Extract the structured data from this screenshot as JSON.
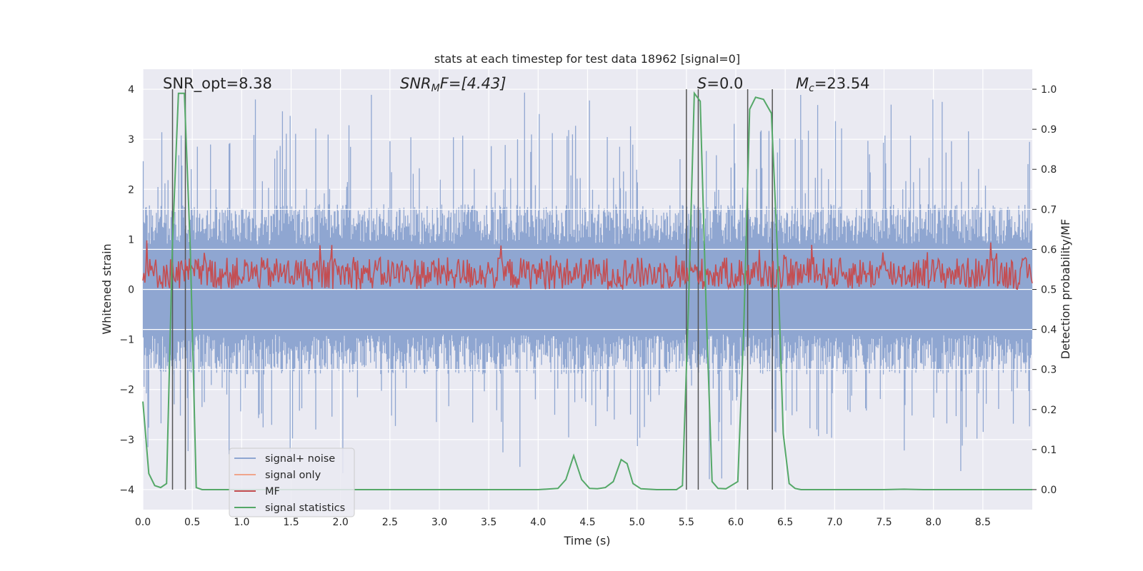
{
  "chart_data": {
    "type": "line",
    "title": "stats at each timestep for test data 18962 [signal=0]",
    "xlabel": "Time (s)",
    "ylabel": "Whitened strain",
    "y2label": "Detection probability/MF",
    "xlim": [
      0,
      9.0
    ],
    "ylim": [
      -4.4,
      4.4
    ],
    "y2lim": [
      -0.05,
      1.05
    ],
    "grid": true,
    "xticks": [
      0.0,
      0.5,
      1.0,
      1.5,
      2.0,
      2.5,
      3.0,
      3.5,
      4.0,
      4.5,
      5.0,
      5.5,
      6.0,
      6.5,
      7.0,
      7.5,
      8.0,
      8.5
    ],
    "yticks": [
      -4,
      -3,
      -2,
      -1,
      0,
      1,
      2,
      3,
      4
    ],
    "y2ticks": [
      0.0,
      0.1,
      0.2,
      0.3,
      0.4,
      0.5,
      0.6,
      0.7,
      0.8,
      0.9,
      1.0
    ],
    "annotations": {
      "snr_opt": "SNR_opt=8.38",
      "snr_mf_base": "SNR",
      "snr_mf_sub": "M",
      "snr_mf_rest": "F=[4.43]",
      "s_stat": "=0.0",
      "s_letter": "S",
      "mc_base": "M",
      "mc_sub": "c",
      "mc_rest": "=23.54"
    },
    "legend": {
      "placement": "lower-left",
      "entries": [
        {
          "label": "signal+ noise",
          "color": "#8fa6d1"
        },
        {
          "label": "signal only",
          "color": "#f0a58c"
        },
        {
          "label": "MF",
          "color": "#c44e52"
        },
        {
          "label": "signal statistics",
          "color": "#55a868"
        }
      ]
    },
    "vertical_lines_x": [
      0.3,
      0.43,
      5.5,
      5.62,
      6.12,
      6.37
    ],
    "series": [
      {
        "name": "signal statistics",
        "axis": "right",
        "color": "#55a868",
        "x": [
          0.0,
          0.06,
          0.12,
          0.18,
          0.24,
          0.3,
          0.36,
          0.42,
          0.48,
          0.54,
          0.6,
          0.7,
          0.8,
          4.0,
          4.2,
          4.28,
          4.36,
          4.44,
          4.52,
          4.6,
          4.68,
          4.76,
          4.84,
          4.9,
          4.96,
          5.04,
          5.2,
          5.4,
          5.46,
          5.52,
          5.58,
          5.64,
          5.7,
          5.76,
          5.82,
          5.9,
          6.02,
          6.08,
          6.14,
          6.2,
          6.28,
          6.36,
          6.42,
          6.48,
          6.54,
          6.6,
          6.66,
          6.74,
          7.5,
          7.7,
          7.9,
          9.0
        ],
        "values": [
          0.22,
          0.04,
          0.01,
          0.005,
          0.015,
          0.62,
          0.99,
          0.99,
          0.6,
          0.005,
          0.0,
          0.0,
          0.0,
          0.0,
          0.003,
          0.025,
          0.085,
          0.025,
          0.003,
          0.002,
          0.005,
          0.02,
          0.075,
          0.065,
          0.015,
          0.002,
          0.0,
          0.0,
          0.01,
          0.45,
          0.99,
          0.97,
          0.45,
          0.02,
          0.003,
          0.002,
          0.02,
          0.4,
          0.95,
          0.98,
          0.975,
          0.94,
          0.6,
          0.14,
          0.015,
          0.003,
          0.0,
          0.0,
          0.0,
          0.001,
          0.0,
          0.0
        ]
      }
    ],
    "noise_series": {
      "name": "signal+ noise",
      "axis": "left",
      "color": "#8fa6d1",
      "typical_peak": 1.7,
      "max_peak": 4.0,
      "min_trough": -3.8
    },
    "mf_series": {
      "name": "MF",
      "axis": "right",
      "color": "#c44e52",
      "baseline": 0.5,
      "typical_range": [
        0.5,
        0.58
      ],
      "max_value": 0.625
    }
  }
}
